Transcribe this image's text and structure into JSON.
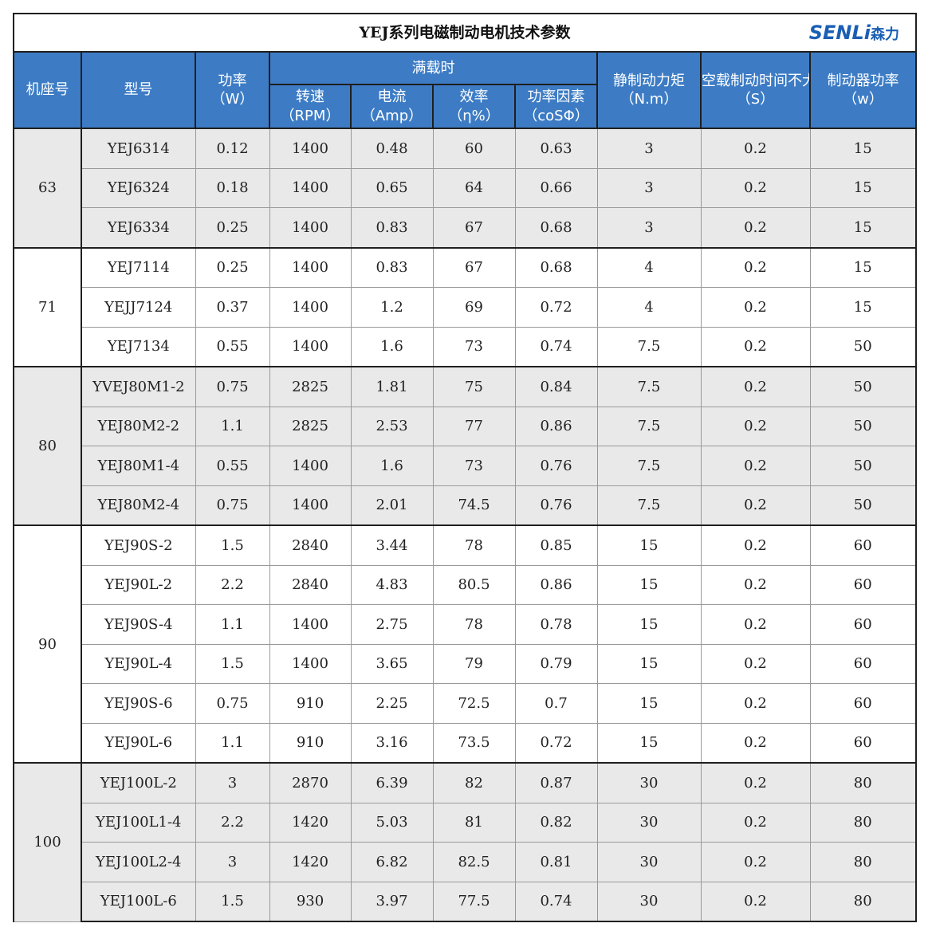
{
  "header": {
    "title": "YEJ系列电磁制动电机技术参数",
    "logo": {
      "latin": "SENLi",
      "chinese": "森力"
    }
  },
  "table": {
    "columns": {
      "frame": "机座号",
      "model": "型号",
      "power": {
        "label": "功率",
        "unit": "（W）"
      },
      "full_load": {
        "label": "满载时",
        "sub": [
          {
            "label": "转速",
            "unit": "（RPM）"
          },
          {
            "label": "电流",
            "unit": "（Amp）"
          },
          {
            "label": "效率",
            "unit": "（η%）"
          },
          {
            "label": "功率因素",
            "unit": "（coSΦ）"
          }
        ]
      },
      "rest": [
        {
          "label": "静制动力矩",
          "unit": "（N.m）"
        },
        {
          "label": "空载制动时间不大于",
          "unit": "（S）"
        },
        {
          "label": "制动器功率",
          "unit": "（w）"
        }
      ]
    },
    "groups": [
      {
        "frame": "63",
        "rows": [
          [
            "YEJ6314",
            "0.12",
            "1400",
            "0.48",
            "60",
            "0.63",
            "3",
            "0.2",
            "15"
          ],
          [
            "YEJ6324",
            "0.18",
            "1400",
            "0.65",
            "64",
            "0.66",
            "3",
            "0.2",
            "15"
          ],
          [
            "YEJ6334",
            "0.25",
            "1400",
            "0.83",
            "67",
            "0.68",
            "3",
            "0.2",
            "15"
          ]
        ]
      },
      {
        "frame": "71",
        "rows": [
          [
            "YEJ7114",
            "0.25",
            "1400",
            "0.83",
            "67",
            "0.68",
            "4",
            "0.2",
            "15"
          ],
          [
            "YEJJ7124",
            "0.37",
            "1400",
            "1.2",
            "69",
            "0.72",
            "4",
            "0.2",
            "15"
          ],
          [
            "YEJ7134",
            "0.55",
            "1400",
            "1.6",
            "73",
            "0.74",
            "7.5",
            "0.2",
            "50"
          ]
        ]
      },
      {
        "frame": "80",
        "rows": [
          [
            "YVEJ80M1-2",
            "0.75",
            "2825",
            "1.81",
            "75",
            "0.84",
            "7.5",
            "0.2",
            "50"
          ],
          [
            "YEJ80M2-2",
            "1.1",
            "2825",
            "2.53",
            "77",
            "0.86",
            "7.5",
            "0.2",
            "50"
          ],
          [
            "YEJ80M1-4",
            "0.55",
            "1400",
            "1.6",
            "73",
            "0.76",
            "7.5",
            "0.2",
            "50"
          ],
          [
            "YEJ80M2-4",
            "0.75",
            "1400",
            "2.01",
            "74.5",
            "0.76",
            "7.5",
            "0.2",
            "50"
          ]
        ]
      },
      {
        "frame": "90",
        "rows": [
          [
            "YEJ90S-2",
            "1.5",
            "2840",
            "3.44",
            "78",
            "0.85",
            "15",
            "0.2",
            "60"
          ],
          [
            "YEJ90L-2",
            "2.2",
            "2840",
            "4.83",
            "80.5",
            "0.86",
            "15",
            "0.2",
            "60"
          ],
          [
            "YEJ90S-4",
            "1.1",
            "1400",
            "2.75",
            "78",
            "0.78",
            "15",
            "0.2",
            "60"
          ],
          [
            "YEJ90L-4",
            "1.5",
            "1400",
            "3.65",
            "79",
            "0.79",
            "15",
            "0.2",
            "60"
          ],
          [
            "YEJ90S-6",
            "0.75",
            "910",
            "2.25",
            "72.5",
            "0.7",
            "15",
            "0.2",
            "60"
          ],
          [
            "YEJ90L-6",
            "1.1",
            "910",
            "3.16",
            "73.5",
            "0.72",
            "15",
            "0.2",
            "60"
          ]
        ]
      },
      {
        "frame": "100",
        "rows": [
          [
            "YEJ100L-2",
            "3",
            "2870",
            "6.39",
            "82",
            "0.87",
            "30",
            "0.2",
            "80"
          ],
          [
            "YEJ100L1-4",
            "2.2",
            "1420",
            "5.03",
            "81",
            "0.82",
            "30",
            "0.2",
            "80"
          ],
          [
            "YEJ100L2-4",
            "3",
            "1420",
            "6.82",
            "82.5",
            "0.81",
            "30",
            "0.2",
            "80"
          ],
          [
            "YEJ100L-6",
            "1.5",
            "930",
            "3.97",
            "77.5",
            "0.74",
            "30",
            "0.2",
            "80"
          ]
        ]
      }
    ]
  }
}
